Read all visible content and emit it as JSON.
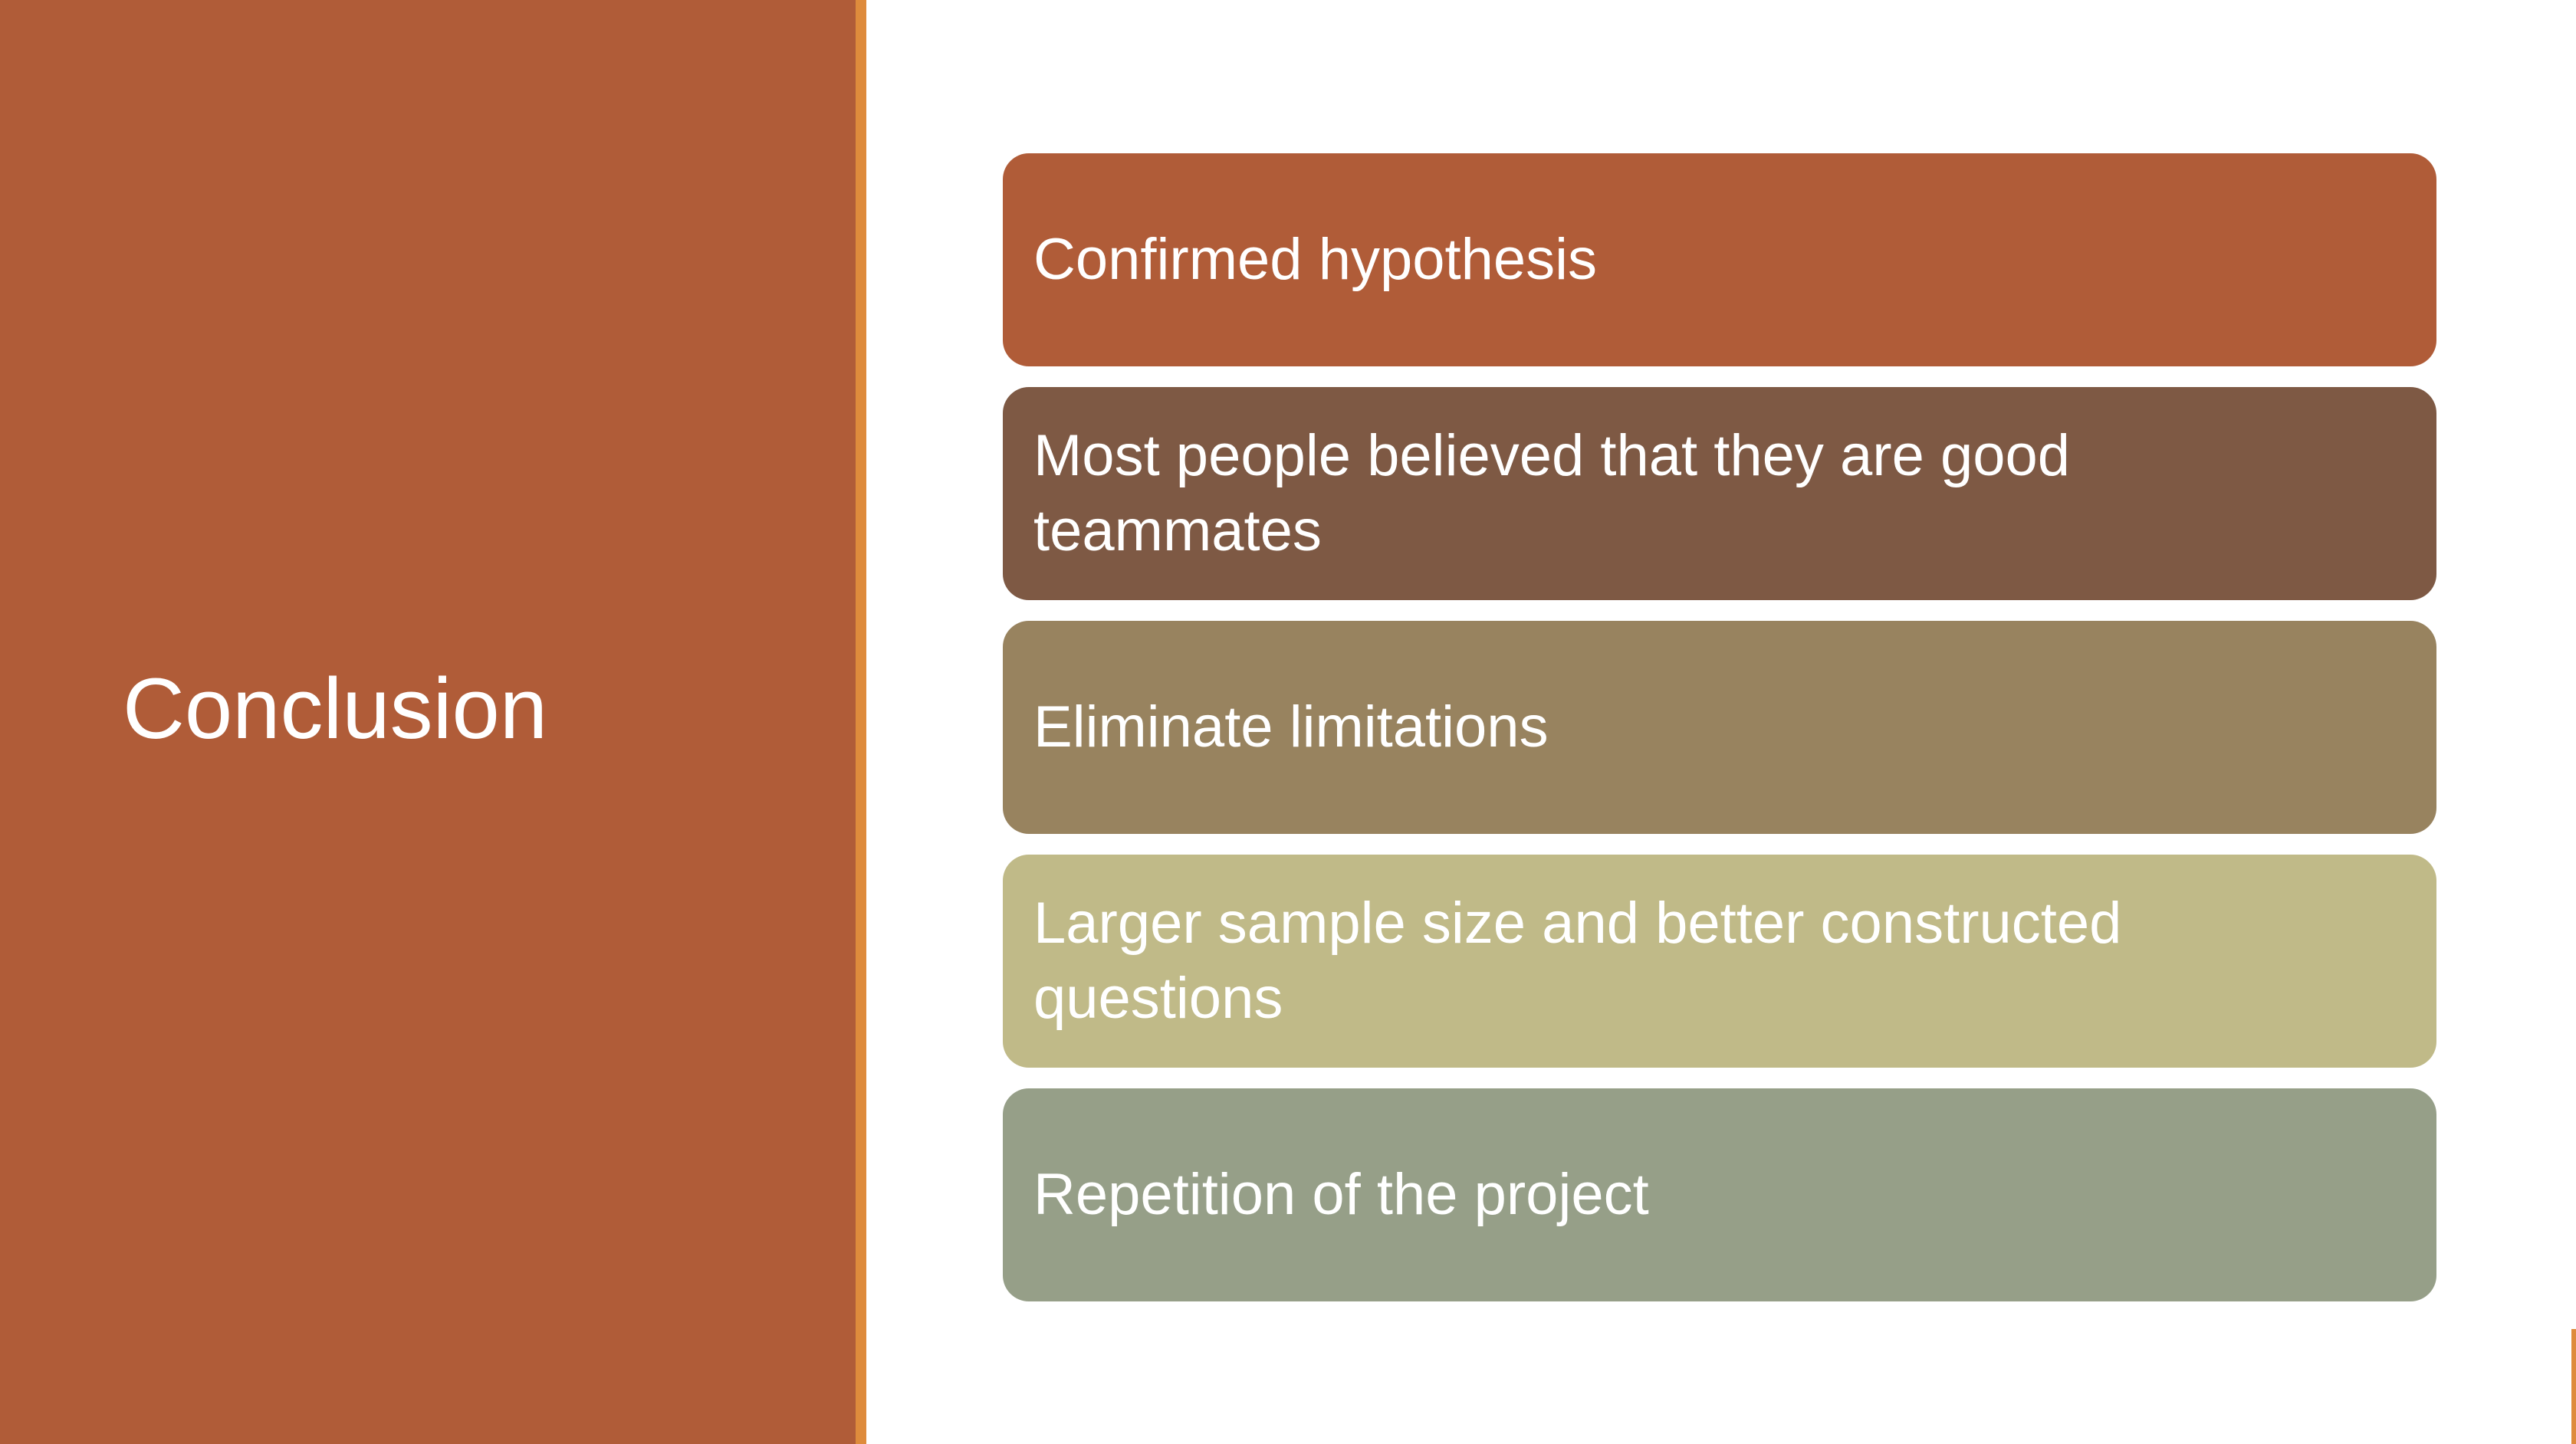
{
  "slide": {
    "title": "Conclusion",
    "colors": {
      "left_panel": "#B05C38",
      "accent_bar": "#DE8B3C",
      "background": "#FFFFFF",
      "text": "#FFFFFF"
    },
    "items": [
      {
        "label": "Confirmed hypothesis",
        "color": "#B05C38"
      },
      {
        "label": "Most people believed that they are good teammates",
        "color": "#7E5944"
      },
      {
        "label": "Eliminate limitations",
        "color": "#98835F"
      },
      {
        "label": "Larger sample size and better constructed questions",
        "color": "#C0BA88"
      },
      {
        "label": "Repetition of the project",
        "color": "#969F88"
      }
    ]
  }
}
